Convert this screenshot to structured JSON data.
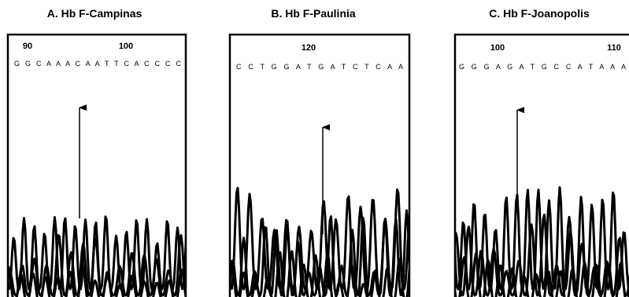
{
  "panels": [
    {
      "title": "A. Hb F-Campinas",
      "positions": [
        "90",
        "100"
      ],
      "sequence": "G G C A A A C A A T T C A C C C C"
    },
    {
      "title": "B. Hb F-Paulinia",
      "positions": [
        "120"
      ],
      "sequence": "C C T G G A T G A T C T C A A"
    },
    {
      "title": "C. Hb F-Joanopolis",
      "positions": [
        "100",
        "110"
      ],
      "sequence": "G G G A G A T G C C A T A A A"
    }
  ]
}
